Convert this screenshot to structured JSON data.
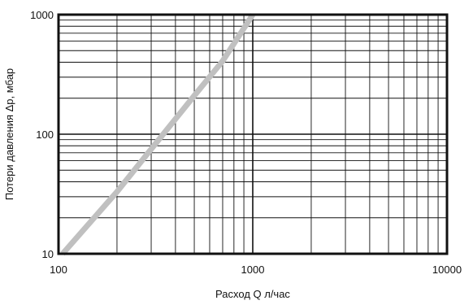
{
  "chart_data": {
    "type": "line",
    "title": "",
    "xlabel": "Расход Q л/час",
    "ylabel": "Потери давления Δp, мбар",
    "x_scale": "log",
    "y_scale": "log",
    "xlim": [
      100,
      10000
    ],
    "ylim": [
      10,
      1000
    ],
    "x_ticks": [
      {
        "value": 100,
        "label": "100"
      },
      {
        "value": 1000,
        "label": "1000"
      },
      {
        "value": 10000,
        "label": "10000"
      }
    ],
    "y_ticks": [
      {
        "value": 10,
        "label": "10"
      },
      {
        "value": 100,
        "label": "100"
      },
      {
        "value": 1000,
        "label": "1000"
      }
    ],
    "grid": true,
    "legend": "none",
    "series": [
      {
        "x": [
          105,
          200,
          300,
          500,
          700,
          1000
        ],
        "y": [
          10,
          33,
          75,
          210,
          410,
          1000
        ],
        "color": "#c0c0c0"
      }
    ]
  }
}
